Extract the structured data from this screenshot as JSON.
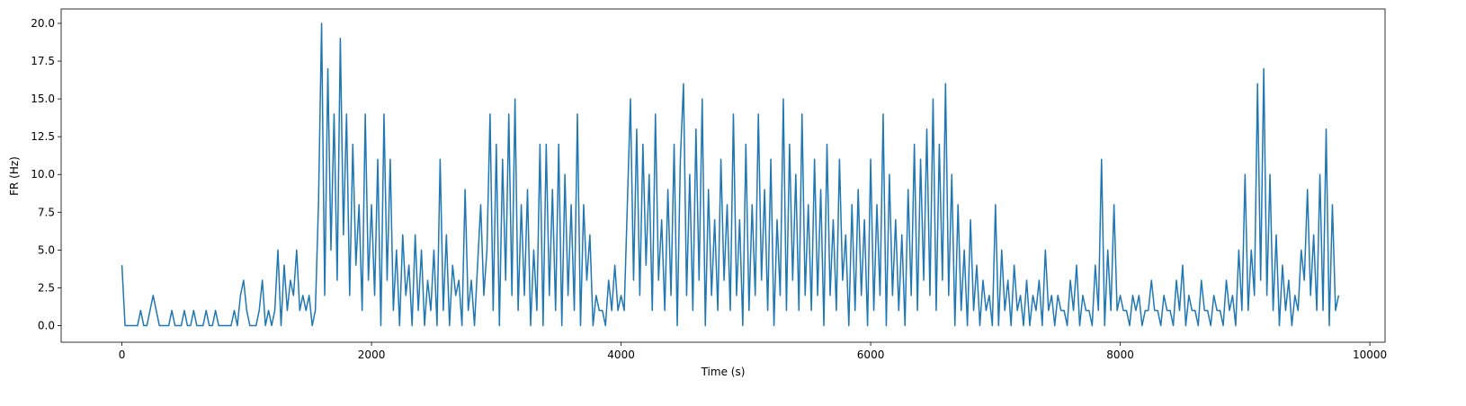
{
  "chart_data": {
    "type": "line",
    "xlabel": "Time (s)",
    "ylabel": "FR (Hz)",
    "xlim": [
      -487,
      10122
    ],
    "ylim": [
      -1.1,
      20.95
    ],
    "xticks": [
      0,
      2000,
      4000,
      6000,
      8000,
      10000
    ],
    "yticks": [
      {
        "value": 0,
        "label": "0.0"
      },
      {
        "value": 2.5,
        "label": "2.5"
      },
      {
        "value": 5,
        "label": "5.0"
      },
      {
        "value": 7.5,
        "label": "7.5"
      },
      {
        "value": 10,
        "label": "10.0"
      },
      {
        "value": 12.5,
        "label": "12.5"
      },
      {
        "value": 15,
        "label": "15.0"
      },
      {
        "value": 17.5,
        "label": "17.5"
      },
      {
        "value": 20,
        "label": "20.0"
      }
    ],
    "grid": false,
    "series": [
      {
        "color": "#1f77b4",
        "x": [
          0,
          25,
          50,
          75,
          100,
          125,
          150,
          175,
          200,
          225,
          250,
          275,
          300,
          325,
          350,
          375,
          400,
          425,
          450,
          475,
          500,
          525,
          550,
          575,
          600,
          625,
          650,
          675,
          700,
          725,
          750,
          775,
          800,
          825,
          850,
          875,
          900,
          925,
          950,
          975,
          1000,
          1025,
          1050,
          1075,
          1100,
          1125,
          1150,
          1175,
          1200,
          1225,
          1250,
          1275,
          1300,
          1325,
          1350,
          1375,
          1400,
          1425,
          1450,
          1475,
          1500,
          1525,
          1550,
          1575,
          1600,
          1625,
          1650,
          1675,
          1700,
          1725,
          1750,
          1775,
          1800,
          1825,
          1850,
          1875,
          1900,
          1925,
          1950,
          1975,
          2000,
          2025,
          2050,
          2075,
          2100,
          2125,
          2150,
          2175,
          2200,
          2225,
          2250,
          2275,
          2300,
          2325,
          2350,
          2375,
          2400,
          2425,
          2450,
          2475,
          2500,
          2525,
          2550,
          2575,
          2600,
          2625,
          2650,
          2675,
          2700,
          2725,
          2750,
          2775,
          2800,
          2825,
          2850,
          2875,
          2900,
          2925,
          2950,
          2975,
          3000,
          3025,
          3050,
          3075,
          3100,
          3125,
          3150,
          3175,
          3200,
          3225,
          3250,
          3275,
          3300,
          3325,
          3350,
          3375,
          3400,
          3425,
          3450,
          3475,
          3500,
          3525,
          3550,
          3575,
          3600,
          3625,
          3650,
          3675,
          3700,
          3725,
          3750,
          3775,
          3800,
          3825,
          3850,
          3875,
          3900,
          3925,
          3950,
          3975,
          4000,
          4025,
          4050,
          4075,
          4100,
          4125,
          4150,
          4175,
          4200,
          4225,
          4250,
          4275,
          4300,
          4325,
          4350,
          4375,
          4400,
          4425,
          4450,
          4475,
          4500,
          4525,
          4550,
          4575,
          4600,
          4625,
          4650,
          4675,
          4700,
          4725,
          4750,
          4775,
          4800,
          4825,
          4850,
          4875,
          4900,
          4925,
          4950,
          4975,
          5000,
          5025,
          5050,
          5075,
          5100,
          5125,
          5150,
          5175,
          5200,
          5225,
          5250,
          5275,
          5300,
          5325,
          5350,
          5375,
          5400,
          5425,
          5450,
          5475,
          5500,
          5525,
          5550,
          5575,
          5600,
          5625,
          5650,
          5675,
          5700,
          5725,
          5750,
          5775,
          5800,
          5825,
          5850,
          5875,
          5900,
          5925,
          5950,
          5975,
          6000,
          6025,
          6050,
          6075,
          6100,
          6125,
          6150,
          6175,
          6200,
          6225,
          6250,
          6275,
          6300,
          6325,
          6350,
          6375,
          6400,
          6425,
          6450,
          6475,
          6500,
          6525,
          6550,
          6575,
          6600,
          6625,
          6650,
          6675,
          6700,
          6725,
          6750,
          6775,
          6800,
          6825,
          6850,
          6875,
          6900,
          6925,
          6950,
          6975,
          7000,
          7025,
          7050,
          7075,
          7100,
          7125,
          7150,
          7175,
          7200,
          7225,
          7250,
          7275,
          7300,
          7325,
          7350,
          7375,
          7400,
          7425,
          7450,
          7475,
          7500,
          7525,
          7550,
          7575,
          7600,
          7625,
          7650,
          7675,
          7700,
          7725,
          7750,
          7775,
          7800,
          7825,
          7850,
          7875,
          7900,
          7925,
          7950,
          7975,
          8000,
          8025,
          8050,
          8075,
          8100,
          8125,
          8150,
          8175,
          8200,
          8225,
          8250,
          8275,
          8300,
          8325,
          8350,
          8375,
          8400,
          8425,
          8450,
          8475,
          8500,
          8525,
          8550,
          8575,
          8600,
          8625,
          8650,
          8675,
          8700,
          8725,
          8750,
          8775,
          8800,
          8825,
          8850,
          8875,
          8900,
          8925,
          8950,
          8975,
          9000,
          9025,
          9050,
          9075,
          9100,
          9125,
          9150,
          9175,
          9200,
          9225,
          9250,
          9275,
          9300,
          9325,
          9350,
          9375,
          9400,
          9425,
          9450,
          9475,
          9500,
          9525,
          9550,
          9575,
          9600,
          9625,
          9650,
          9675,
          9700,
          9725,
          9750
        ],
        "values": [
          4,
          0,
          0,
          0,
          0,
          0,
          1,
          0,
          0,
          1,
          2,
          1,
          0,
          0,
          0,
          0,
          1,
          0,
          0,
          0,
          1,
          0,
          0,
          1,
          0,
          0,
          0,
          1,
          0,
          0,
          1,
          0,
          0,
          0,
          0,
          0,
          1,
          0,
          2,
          3,
          1,
          0,
          0,
          0,
          1,
          3,
          0,
          1,
          0,
          1,
          5,
          0,
          4,
          1,
          3,
          2,
          5,
          1,
          2,
          1,
          2,
          0,
          1,
          8,
          20,
          2,
          17,
          5,
          14,
          3,
          19,
          6,
          14,
          2,
          12,
          4,
          8,
          1,
          14,
          3,
          8,
          2,
          11,
          0,
          14,
          3,
          11,
          1,
          5,
          0,
          6,
          2,
          4,
          0,
          6,
          1,
          5,
          0,
          3,
          1,
          5,
          0,
          11,
          1,
          6,
          0,
          4,
          2,
          3,
          0,
          9,
          1,
          3,
          0,
          4,
          8,
          2,
          5,
          14,
          1,
          12,
          0,
          11,
          3,
          14,
          2,
          15,
          1,
          8,
          2,
          9,
          0,
          5,
          1,
          12,
          0,
          12,
          2,
          9,
          1,
          12,
          0,
          10,
          2,
          8,
          1,
          14,
          0,
          8,
          3,
          6,
          0,
          2,
          1,
          1,
          0,
          3,
          1,
          4,
          1,
          2,
          1,
          8,
          15,
          3,
          13,
          2,
          12,
          4,
          10,
          1,
          14,
          3,
          7,
          1,
          9,
          2,
          12,
          0,
          11,
          16,
          2,
          10,
          1,
          13,
          3,
          15,
          0,
          9,
          2,
          7,
          1,
          11,
          3,
          8,
          1,
          14,
          2,
          7,
          0,
          12,
          1,
          8,
          2,
          14,
          3,
          9,
          1,
          11,
          0,
          7,
          2,
          15,
          1,
          12,
          3,
          10,
          1,
          14,
          2,
          8,
          1,
          11,
          2,
          9,
          0,
          12,
          2,
          7,
          1,
          11,
          3,
          6,
          0,
          8,
          1,
          9,
          2,
          7,
          0,
          11,
          1,
          8,
          2,
          14,
          0,
          10,
          2,
          7,
          1,
          6,
          0,
          9,
          2,
          12,
          1,
          11,
          3,
          13,
          2,
          15,
          1,
          12,
          3,
          16,
          2,
          10,
          0,
          8,
          1,
          5,
          0,
          7,
          1,
          4,
          0,
          3,
          1,
          2,
          0,
          8,
          0,
          5,
          1,
          3,
          0,
          4,
          1,
          2,
          0,
          3,
          0,
          2,
          1,
          3,
          0,
          5,
          1,
          2,
          0,
          2,
          1,
          1,
          0,
          3,
          1,
          4,
          0,
          2,
          1,
          1,
          0,
          4,
          1,
          11,
          0,
          5,
          1,
          8,
          1,
          2,
          1,
          1,
          0,
          2,
          1,
          2,
          0,
          1,
          1,
          3,
          1,
          1,
          0,
          2,
          1,
          1,
          0,
          3,
          1,
          4,
          0,
          2,
          1,
          1,
          0,
          3,
          1,
          1,
          0,
          2,
          1,
          1,
          0,
          3,
          1,
          2,
          0,
          5,
          1,
          10,
          1,
          5,
          2,
          16,
          3,
          17,
          2,
          10,
          1,
          6,
          0,
          4,
          1,
          3,
          0,
          2,
          1,
          5,
          3,
          9,
          2,
          6,
          1,
          10,
          1,
          13,
          0,
          8,
          1,
          2
        ]
      }
    ]
  }
}
